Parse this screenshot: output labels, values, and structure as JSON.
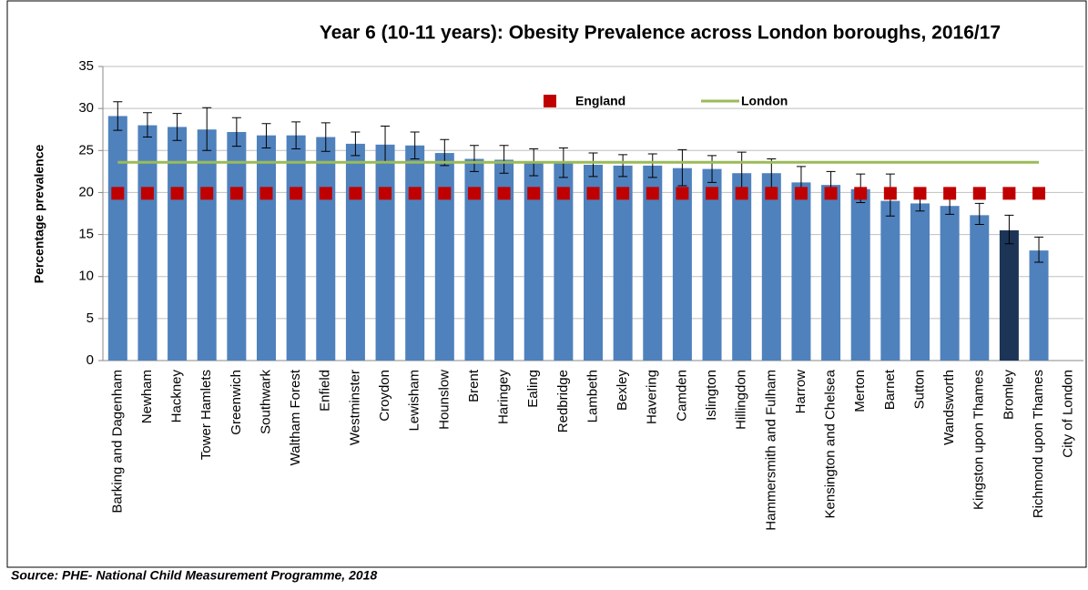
{
  "chart_data": {
    "type": "bar",
    "title": "Year 6 (10-11 years): Obesity Prevalence across London boroughs, 2016/17",
    "y_label": "Percentage prevalence",
    "source": "Source: PHE- National Child Measurement Programme, 2018",
    "categories": [
      "Barking and Dagenham",
      "Newham",
      "Hackney",
      "Tower Hamlets",
      "Greenwich",
      "Southwark",
      "Waltham Forest",
      "Enfield",
      "Westminster",
      "Croydon",
      "Lewisham",
      "Hounslow",
      "Brent",
      "Haringey",
      "Ealing",
      "Redbridge",
      "Lambeth",
      "Bexley",
      "Havering",
      "Camden",
      "Islington",
      "Hillingdon",
      "Hammersmith and Fulham",
      "Harrow",
      "Kensington and Chelsea",
      "Merton",
      "Barnet",
      "Sutton",
      "Wandsworth",
      "Kingston upon Thames",
      "Bromley",
      "Richmond upon Thames",
      "City of London"
    ],
    "series": [
      {
        "color": "#4f81bd",
        "highlight_category": "Bromley",
        "highlight_color": "#1c3557",
        "values": [
          29.1,
          28.0,
          27.8,
          27.5,
          27.2,
          26.8,
          26.8,
          26.6,
          25.8,
          25.7,
          25.6,
          24.7,
          24.0,
          23.9,
          23.5,
          23.5,
          23.3,
          23.2,
          23.2,
          22.9,
          22.8,
          22.3,
          22.3,
          21.2,
          20.9,
          20.4,
          19.0,
          18.7,
          18.4,
          17.3,
          15.5,
          13.1,
          null
        ],
        "ci_lower": [
          27.4,
          26.6,
          26.2,
          25.0,
          25.5,
          25.3,
          25.2,
          24.9,
          24.4,
          23.5,
          24.0,
          23.2,
          22.5,
          22.3,
          22.0,
          21.8,
          21.9,
          21.9,
          21.8,
          20.8,
          21.2,
          20.0,
          20.6,
          19.4,
          19.4,
          18.8,
          17.2,
          17.8,
          17.4,
          16.2,
          13.9,
          11.7,
          null
        ],
        "ci_upper": [
          30.8,
          29.5,
          29.4,
          30.1,
          28.9,
          28.2,
          28.4,
          28.3,
          27.2,
          27.9,
          27.2,
          26.3,
          25.6,
          25.6,
          25.2,
          25.3,
          24.7,
          24.5,
          24.6,
          25.1,
          24.4,
          24.8,
          24.0,
          23.1,
          22.5,
          22.2,
          22.2,
          19.8,
          19.6,
          18.7,
          17.3,
          14.7,
          null
        ]
      },
      {
        "name": "England",
        "type": "marker",
        "color": "#c00000",
        "values": [
          19.9,
          19.9,
          19.9,
          19.9,
          19.9,
          19.9,
          19.9,
          19.9,
          19.9,
          19.9,
          19.9,
          19.9,
          19.9,
          19.9,
          19.9,
          19.9,
          19.9,
          19.9,
          19.9,
          19.9,
          19.9,
          19.9,
          19.9,
          19.9,
          19.9,
          19.9,
          19.9,
          19.9,
          19.9,
          19.9,
          19.9,
          19.9,
          null
        ]
      },
      {
        "name": "London",
        "type": "line",
        "color": "#9bbb59",
        "values": [
          23.6,
          23.6,
          23.6,
          23.6,
          23.6,
          23.6,
          23.6,
          23.6,
          23.6,
          23.6,
          23.6,
          23.6,
          23.6,
          23.6,
          23.6,
          23.6,
          23.6,
          23.6,
          23.6,
          23.6,
          23.6,
          23.6,
          23.6,
          23.6,
          23.6,
          23.6,
          23.6,
          23.6,
          23.6,
          23.6,
          23.6,
          23.6,
          null
        ]
      }
    ],
    "ylim": [
      0,
      35
    ],
    "yticks": [
      0,
      5,
      10,
      15,
      20,
      25,
      30,
      35
    ],
    "grid": true,
    "legend": "top"
  }
}
